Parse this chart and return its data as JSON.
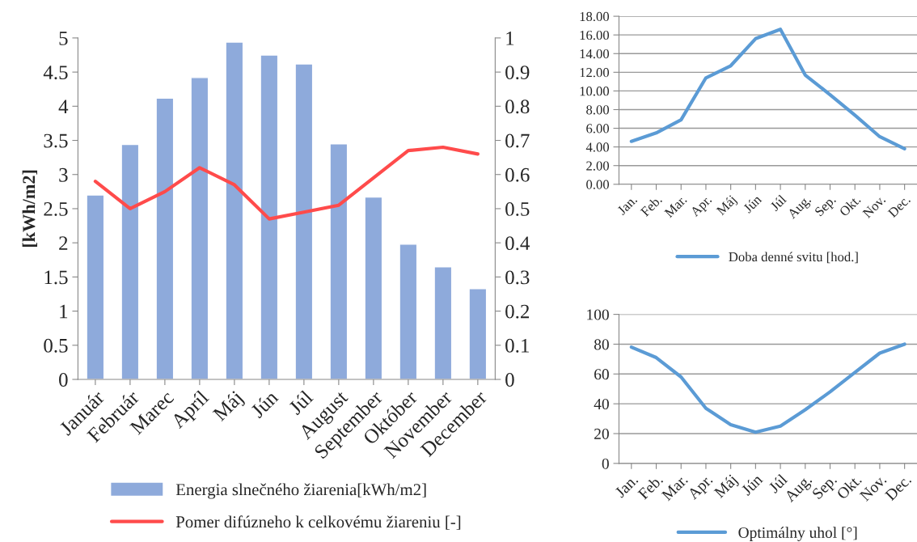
{
  "chart_data": [
    {
      "type": "bar",
      "categories": [
        "Január",
        "Február",
        "Marec",
        "Apríl",
        "Máj",
        "Jún",
        "Júl",
        "August",
        "September",
        "Október",
        "November",
        "December"
      ],
      "ylabel": "[kWh/m2]",
      "series": [
        {
          "name": "Energia slnečného žiarenia[kWh/m2]",
          "type": "bar",
          "color": "#8eaadb",
          "values": [
            2.7,
            3.44,
            4.12,
            4.42,
            4.94,
            4.75,
            4.62,
            3.45,
            2.67,
            1.98,
            1.65,
            1.33
          ]
        },
        {
          "name": "Pomer difúzneho k celkovému žiareniu [-]",
          "type": "line",
          "axis": "y2",
          "color": "#ff4b4b",
          "values": [
            0.58,
            0.5,
            0.55,
            0.62,
            0.57,
            0.47,
            0.49,
            0.51,
            0.59,
            0.67,
            0.68,
            0.66
          ]
        }
      ],
      "ylim": [
        0,
        5
      ],
      "yticks": [
        0,
        0.5,
        1,
        1.5,
        2,
        2.5,
        3,
        3.5,
        4,
        4.5,
        5
      ],
      "y2lim": [
        0,
        1
      ],
      "y2ticks": [
        0,
        0.1,
        0.2,
        0.3,
        0.4,
        0.5,
        0.6,
        0.7,
        0.8,
        0.9,
        1
      ],
      "grid": false,
      "legend": "bottom"
    },
    {
      "type": "line",
      "categories": [
        "Jan.",
        "Feb.",
        "Mar.",
        "Apr.",
        "Máj",
        "Jún",
        "Júl",
        "Aug.",
        "Sep.",
        "Okt.",
        "Nov.",
        "Dec."
      ],
      "series": [
        {
          "name": "Doba denné svitu [hod.]",
          "color": "#5b9bd5",
          "values": [
            4.6,
            5.5,
            6.9,
            11.4,
            12.7,
            15.6,
            16.6,
            11.7,
            9.6,
            7.4,
            5.1,
            3.8
          ]
        }
      ],
      "ylim": [
        0,
        18
      ],
      "yticks": [
        {
          "value": 0,
          "label": "0.00"
        },
        {
          "value": 2,
          "label": "2.00"
        },
        {
          "value": 4,
          "label": "4.00"
        },
        {
          "value": 6,
          "label": "6.00"
        },
        {
          "value": 8,
          "label": "8.00"
        },
        {
          "value": 10,
          "label": "10.00"
        },
        {
          "value": 12,
          "label": "12.00"
        },
        {
          "value": 14,
          "label": "14.00"
        },
        {
          "value": 16,
          "label": "16.00"
        },
        {
          "value": 18,
          "label": "18.00"
        }
      ],
      "grid": "y",
      "legend": "bottom"
    },
    {
      "type": "line",
      "categories": [
        "Jan.",
        "Feb.",
        "Mar.",
        "Apr.",
        "Máj",
        "Jún",
        "Júl",
        "Aug.",
        "Sep.",
        "Okt.",
        "Nov.",
        "Dec."
      ],
      "series": [
        {
          "name": "Optimálny uhol [°]",
          "color": "#5b9bd5",
          "values": [
            78,
            71,
            58,
            37,
            26,
            21,
            25,
            36,
            48,
            61,
            74,
            80
          ]
        }
      ],
      "ylim": [
        0,
        100
      ],
      "yticks": [
        0,
        20,
        40,
        60,
        80,
        100
      ],
      "grid": "y",
      "legend": "bottom"
    }
  ]
}
